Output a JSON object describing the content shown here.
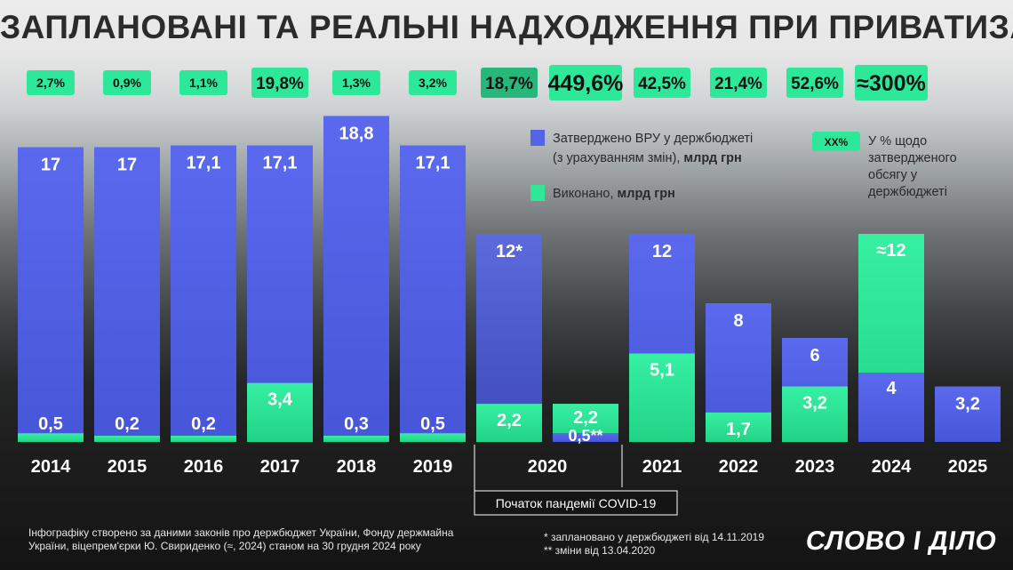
{
  "title": "ЗАПЛАНОВАНІ ТА РЕАЛЬНІ НАДХОДЖЕННЯ ПРИ ПРИВАТИЗАЦІЇ",
  "colors": {
    "planned": "#5563e6",
    "actual": "#2ee89a",
    "pct_badge": "#2ee89a"
  },
  "legend": {
    "planned_line1": "Затверджено ВРУ у держбюджеті",
    "planned_line2_regular": "(з урахуванням змін), ",
    "planned_line2_bold": "млрд грн",
    "actual_regular": "Виконано, ",
    "actual_bold": "млрд грн",
    "pct_badge": "ХХ%",
    "pct_line1": "У % щодо",
    "pct_line2": "затвердженого",
    "pct_line3": "обсягу у",
    "pct_line4": "держбюджеті"
  },
  "annotation": {
    "pandemic": "Початок пандемії COVID-19"
  },
  "footnotes": {
    "source_line1": "Інфографіку створено за даними законів про держбюджет України, Фонду держмайна",
    "source_line2": "України, віцепрем'єрки Ю. Свириденко (≈, 2024) станом на 30 грудня 2024 року",
    "star1": "* заплановано у держбюджеті від 14.11.2019",
    "star2": "** зміни від 13.04.2020"
  },
  "logo": "СЛОВО І ДІЛО",
  "chart_data": {
    "type": "bar",
    "categories": [
      "2014",
      "2015",
      "2016",
      "2017",
      "2018",
      "2019",
      "2020",
      "2021",
      "2022",
      "2023",
      "2024",
      "2025"
    ],
    "series": [
      {
        "name": "Затверджено ВРУ у держбюджеті (з урахуванням змін), млрд грн",
        "values": [
          17,
          17,
          17.1,
          17.1,
          18.8,
          17.1,
          12,
          12,
          8,
          6,
          4,
          3.2
        ],
        "labels": [
          "17",
          "17",
          "17,1",
          "17,1",
          "18,8",
          "17,1",
          "12*",
          "12",
          "8",
          "6",
          "4",
          "3,2"
        ]
      },
      {
        "name": "Виконано, млрд грн",
        "values": [
          0.5,
          0.2,
          0.2,
          3.4,
          0.3,
          0.5,
          2.2,
          5.1,
          1.7,
          3.2,
          12,
          null
        ],
        "labels": [
          "0,5",
          "0,2",
          "0,2",
          "3,4",
          "0,3",
          "0,5",
          "2,2",
          "5,1",
          "1,7",
          "3,2",
          "≈12",
          ""
        ]
      }
    ],
    "extra_2020": {
      "planned": 0.5,
      "planned_label": "0,5**",
      "actual": 2.2,
      "actual_label": "2,2"
    },
    "percent_labels": [
      "2,7%",
      "0,9%",
      "1,1%",
      "19,8%",
      "1,3%",
      "3,2%",
      "18,7%",
      "449,6%",
      "42,5%",
      "21,4%",
      "52,6%",
      "≈300%"
    ]
  }
}
